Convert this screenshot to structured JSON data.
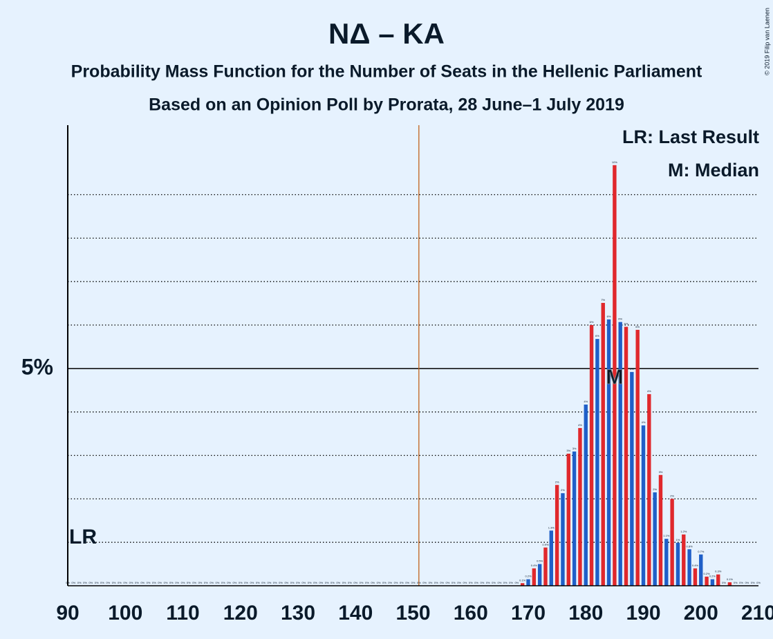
{
  "chart_data": {
    "type": "bar",
    "title": "NΔ – ΚΑ",
    "subtitle": [
      "Probability Mass Function for the Number of Seats in the Hellenic Parliament",
      "Based on an Opinion Poll by Prorata, 28 June–1 July 2019"
    ],
    "copyright": "© 2019 Filip van Laenen",
    "legend": [
      "LR: Last Result",
      "M: Median"
    ],
    "last_result": 90,
    "last_result_label": "LR",
    "median": 185,
    "median_label": "M",
    "majority": 151,
    "colors": [
      "#1f5fc8",
      "#e0282c"
    ],
    "x": [
      90,
      91,
      92,
      93,
      94,
      95,
      96,
      97,
      98,
      99,
      100,
      101,
      102,
      103,
      104,
      105,
      106,
      107,
      108,
      109,
      110,
      111,
      112,
      113,
      114,
      115,
      116,
      117,
      118,
      119,
      120,
      121,
      122,
      123,
      124,
      125,
      126,
      127,
      128,
      129,
      130,
      131,
      132,
      133,
      134,
      135,
      136,
      137,
      138,
      139,
      140,
      141,
      142,
      143,
      144,
      145,
      146,
      147,
      148,
      149,
      150,
      151,
      152,
      153,
      154,
      155,
      156,
      157,
      158,
      159,
      160,
      161,
      162,
      163,
      164,
      165,
      166,
      167,
      168,
      169,
      170,
      171,
      172,
      173,
      174,
      175,
      176,
      177,
      178,
      179,
      180,
      181,
      182,
      183,
      184,
      185,
      186,
      187,
      188,
      189,
      190,
      191,
      192,
      193,
      194,
      195,
      196,
      197,
      198,
      199,
      200,
      201,
      202,
      203,
      204,
      205,
      206,
      207,
      208,
      209,
      210
    ],
    "values": [
      0,
      0,
      0,
      0,
      0,
      0,
      0,
      0,
      0,
      0,
      0,
      0,
      0,
      0,
      0,
      0,
      0,
      0,
      0,
      0,
      0,
      0,
      0,
      0,
      0,
      0,
      0,
      0,
      0,
      0,
      0,
      0,
      0,
      0,
      0,
      0,
      0,
      0,
      0,
      0,
      0,
      0,
      0,
      0,
      0,
      0,
      0,
      0,
      0,
      0,
      0,
      0,
      0,
      0,
      0,
      0,
      0,
      0,
      0,
      0,
      0,
      0,
      0,
      0,
      0,
      0,
      0,
      0,
      0,
      0,
      0,
      0,
      0,
      0,
      0,
      0,
      0,
      0,
      0,
      0.06,
      0.15,
      0.4,
      0.5,
      0.88,
      1.27,
      2.32,
      2.13,
      3.04,
      3.09,
      3.63,
      4.17,
      6.0,
      5.68,
      6.51,
      6.13,
      9.68,
      6.07,
      5.96,
      4.92,
      5.89,
      3.69,
      4.41,
      2.15,
      2.55,
      1.08,
      2.0,
      0.99,
      1.18,
      0.84,
      0.4,
      0.72,
      0.21,
      0.15,
      0.26,
      0,
      0.08,
      0,
      0,
      0,
      0,
      0
    ],
    "value_labels": [
      "0%",
      "0%",
      "0%",
      "0%",
      "0%",
      "0%",
      "0%",
      "0%",
      "0%",
      "0%",
      "0%",
      "0%",
      "0%",
      "0%",
      "0%",
      "0%",
      "0%",
      "0%",
      "0%",
      "0%",
      "0%",
      "0%",
      "0%",
      "0%",
      "0%",
      "0%",
      "0%",
      "0%",
      "0%",
      "0%",
      "0%",
      "0%",
      "0%",
      "0%",
      "0%",
      "0%",
      "0%",
      "0%",
      "0%",
      "0%",
      "0%",
      "0%",
      "0%",
      "0%",
      "0%",
      "0%",
      "0%",
      "0%",
      "0%",
      "0%",
      "0%",
      "0%",
      "0%",
      "0%",
      "0%",
      "0%",
      "0%",
      "0%",
      "0%",
      "0%",
      "0%",
      "0%",
      "0%",
      "0%",
      "0%",
      "0%",
      "0%",
      "0%",
      "0%",
      "0%",
      "0%",
      "0%",
      "0%",
      "0%",
      "0%",
      "0%",
      "0%",
      "0%",
      "0%",
      "0.1%",
      "0.2%",
      "0.4%",
      "0.5%",
      "0.9%",
      "1.3%",
      "2%",
      "2%",
      "3%",
      "3%",
      "4%",
      "4%",
      "6%",
      "6%",
      "7%",
      "6%",
      "10%",
      "6%",
      "6%",
      "5%",
      "6%",
      "4%",
      "4%",
      "2%",
      "3%",
      "1.1%",
      "2%",
      "1%",
      "1.2%",
      "0.8%",
      "0.4%",
      "0.7%",
      "0.2%",
      "0.2%",
      "0.3%",
      "0%",
      "0.1%",
      "0%",
      "0%",
      "0%",
      "0%",
      "0%"
    ],
    "xlim": [
      90,
      210
    ],
    "xticks": [
      90,
      100,
      110,
      120,
      130,
      140,
      150,
      160,
      170,
      180,
      190,
      200,
      210
    ],
    "ylim": [
      0,
      10.6
    ],
    "yticks": [
      {
        "value": 5,
        "label": "5%"
      }
    ],
    "grid_lines": [
      1,
      2,
      3,
      4,
      6,
      7,
      8,
      9
    ]
  }
}
